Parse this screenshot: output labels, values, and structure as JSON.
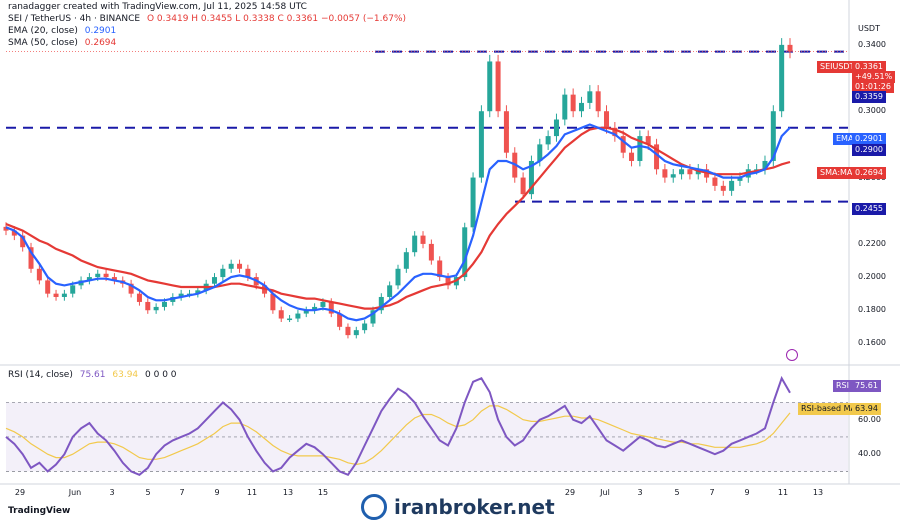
{
  "header": {
    "creator": "ranadagger created with TradingView.com, Jul 11, 2025 14:58 UTC",
    "symbol": "SEI / TetherUS · 4h · BINANCE",
    "ohlc": "O 0.3419 H 0.3455 L 0.3338 C 0.3361 −0.0057 (−1.67%)",
    "ema_label": "EMA (20, close)",
    "ema_value": "0.2901",
    "sma_label": "SMA (50, close)",
    "sma_value": "0.2694",
    "rsi_label": "RSI (14, close)",
    "rsi_value": "75.61",
    "rsi_ma_value": "63.94",
    "rsi_zeros": "0 0 0 0"
  },
  "axis": {
    "currency": "USDT",
    "price_ticks": [
      "0.3400",
      "0.3000",
      "0.2800",
      "0.2600",
      "0.2400",
      "0.2200",
      "0.2000",
      "0.1800",
      "0.1600"
    ],
    "rsi_ticks": [
      "80.00",
      "60.00",
      "40.00"
    ],
    "x_ticks": [
      "29",
      "Jun",
      "3",
      "5",
      "7",
      "9",
      "11",
      "13",
      "15",
      "29",
      "Jul",
      "3",
      "5",
      "7",
      "9",
      "11",
      "13"
    ]
  },
  "tags": {
    "symbol_tag": "SEIUSDT",
    "price": "0.3361",
    "pct": "+49.51%",
    "countdown": "01:01:26",
    "level_0_3359": "0.3359",
    "ema_tag": "EMA",
    "ema_val": "0.2901",
    "level_0_2900": "0.2900",
    "sma_tag": "SMA:MA",
    "sma_val": "0.2694",
    "level_0_2455": "0.2455",
    "rsi_tag": "RSI",
    "rsi_val": "75.61",
    "rsi_ma_tag": "RSI-based MA",
    "rsi_ma_val": "63.94"
  },
  "footer": {
    "tv_brand": "TradingView",
    "watermark": "iranbroker.net"
  },
  "colors": {
    "up": "#26a69a",
    "down": "#ef5350",
    "ema": "#2962ff",
    "sma": "#e53935",
    "rsi": "#7e57c2",
    "rsi_ma": "#f2c94c",
    "level": "#1a1aa8"
  },
  "chart_data": {
    "type": "candlestick",
    "title": "SEI / TetherUS · 4h · BINANCE",
    "ylim": [
      0.15,
      0.355
    ],
    "horizontal_levels": [
      0.3359,
      0.29,
      0.2455
    ],
    "close_path": [
      0.228,
      0.225,
      0.218,
      0.205,
      0.198,
      0.19,
      0.188,
      0.19,
      0.195,
      0.198,
      0.2,
      0.202,
      0.2,
      0.198,
      0.196,
      0.19,
      0.185,
      0.18,
      0.182,
      0.185,
      0.188,
      0.19,
      0.19,
      0.192,
      0.196,
      0.2,
      0.205,
      0.208,
      0.205,
      0.2,
      0.195,
      0.19,
      0.18,
      0.175,
      0.175,
      0.178,
      0.18,
      0.182,
      0.185,
      0.178,
      0.17,
      0.165,
      0.168,
      0.172,
      0.18,
      0.188,
      0.195,
      0.205,
      0.215,
      0.225,
      0.22,
      0.21,
      0.2,
      0.195,
      0.2,
      0.23,
      0.26,
      0.3,
      0.33,
      0.3,
      0.275,
      0.26,
      0.25,
      0.27,
      0.28,
      0.285,
      0.295,
      0.31,
      0.3,
      0.305,
      0.312,
      0.3,
      0.29,
      0.285,
      0.275,
      0.27,
      0.285,
      0.28,
      0.265,
      0.26,
      0.262,
      0.265,
      0.262,
      0.265,
      0.26,
      0.255,
      0.252,
      0.258,
      0.26,
      0.265,
      0.265,
      0.27,
      0.3,
      0.34,
      0.336
    ],
    "ema20": [
      0.23,
      0.228,
      0.224,
      0.215,
      0.208,
      0.2,
      0.196,
      0.195,
      0.196,
      0.197,
      0.198,
      0.199,
      0.199,
      0.198,
      0.197,
      0.195,
      0.192,
      0.188,
      0.186,
      0.186,
      0.187,
      0.188,
      0.189,
      0.19,
      0.192,
      0.194,
      0.197,
      0.2,
      0.201,
      0.2,
      0.198,
      0.195,
      0.19,
      0.186,
      0.183,
      0.181,
      0.18,
      0.18,
      0.181,
      0.18,
      0.178,
      0.175,
      0.174,
      0.175,
      0.178,
      0.182,
      0.186,
      0.19,
      0.195,
      0.2,
      0.202,
      0.202,
      0.201,
      0.2,
      0.201,
      0.21,
      0.225,
      0.245,
      0.265,
      0.27,
      0.27,
      0.268,
      0.265,
      0.267,
      0.27,
      0.274,
      0.279,
      0.286,
      0.288,
      0.29,
      0.292,
      0.29,
      0.288,
      0.286,
      0.282,
      0.278,
      0.279,
      0.278,
      0.274,
      0.27,
      0.268,
      0.267,
      0.266,
      0.265,
      0.264,
      0.262,
      0.26,
      0.26,
      0.26,
      0.262,
      0.263,
      0.265,
      0.272,
      0.285,
      0.2901
    ],
    "sma50": [
      0.232,
      0.23,
      0.228,
      0.225,
      0.222,
      0.22,
      0.217,
      0.215,
      0.213,
      0.21,
      0.208,
      0.206,
      0.205,
      0.204,
      0.203,
      0.202,
      0.2,
      0.198,
      0.197,
      0.196,
      0.195,
      0.194,
      0.194,
      0.194,
      0.194,
      0.194,
      0.195,
      0.196,
      0.196,
      0.195,
      0.194,
      0.193,
      0.192,
      0.19,
      0.189,
      0.188,
      0.187,
      0.187,
      0.186,
      0.185,
      0.184,
      0.183,
      0.182,
      0.181,
      0.181,
      0.182,
      0.183,
      0.185,
      0.188,
      0.19,
      0.192,
      0.194,
      0.195,
      0.196,
      0.198,
      0.202,
      0.208,
      0.215,
      0.225,
      0.232,
      0.238,
      0.243,
      0.248,
      0.254,
      0.26,
      0.266,
      0.272,
      0.278,
      0.282,
      0.286,
      0.289,
      0.29,
      0.29,
      0.289,
      0.287,
      0.284,
      0.282,
      0.28,
      0.277,
      0.274,
      0.271,
      0.268,
      0.266,
      0.264,
      0.263,
      0.262,
      0.262,
      0.262,
      0.262,
      0.263,
      0.264,
      0.265,
      0.266,
      0.268,
      0.2694
    ],
    "rsi": [
      50,
      46,
      40,
      32,
      35,
      30,
      34,
      40,
      50,
      55,
      58,
      52,
      48,
      42,
      35,
      30,
      28,
      32,
      40,
      45,
      48,
      50,
      52,
      55,
      60,
      65,
      70,
      66,
      60,
      50,
      42,
      35,
      30,
      32,
      38,
      42,
      46,
      44,
      40,
      35,
      30,
      28,
      35,
      45,
      55,
      65,
      72,
      78,
      75,
      70,
      62,
      55,
      48,
      45,
      55,
      70,
      82,
      84,
      76,
      60,
      50,
      45,
      48,
      55,
      60,
      62,
      65,
      68,
      60,
      58,
      62,
      55,
      48,
      45,
      42,
      46,
      50,
      48,
      45,
      44,
      46,
      48,
      46,
      44,
      42,
      40,
      42,
      46,
      48,
      50,
      52,
      55,
      70,
      84,
      75.61
    ],
    "rsi_ma": [
      55,
      53,
      50,
      46,
      43,
      40,
      38,
      38,
      40,
      43,
      46,
      47,
      47,
      46,
      44,
      41,
      38,
      37,
      37,
      38,
      40,
      42,
      44,
      46,
      49,
      52,
      56,
      58,
      58,
      56,
      53,
      49,
      45,
      42,
      40,
      39,
      39,
      39,
      39,
      38,
      37,
      35,
      34,
      35,
      38,
      42,
      47,
      52,
      57,
      61,
      63,
      63,
      61,
      58,
      56,
      57,
      60,
      65,
      68,
      68,
      66,
      63,
      60,
      59,
      59,
      60,
      61,
      62,
      62,
      61,
      61,
      60,
      58,
      56,
      54,
      52,
      51,
      50,
      49,
      48,
      47,
      47,
      46,
      46,
      45,
      44,
      44,
      44,
      44,
      45,
      46,
      48,
      52,
      58,
      63.94
    ],
    "rsi_ylim": [
      25,
      90
    ],
    "rsi_bands": [
      70,
      30
    ]
  }
}
